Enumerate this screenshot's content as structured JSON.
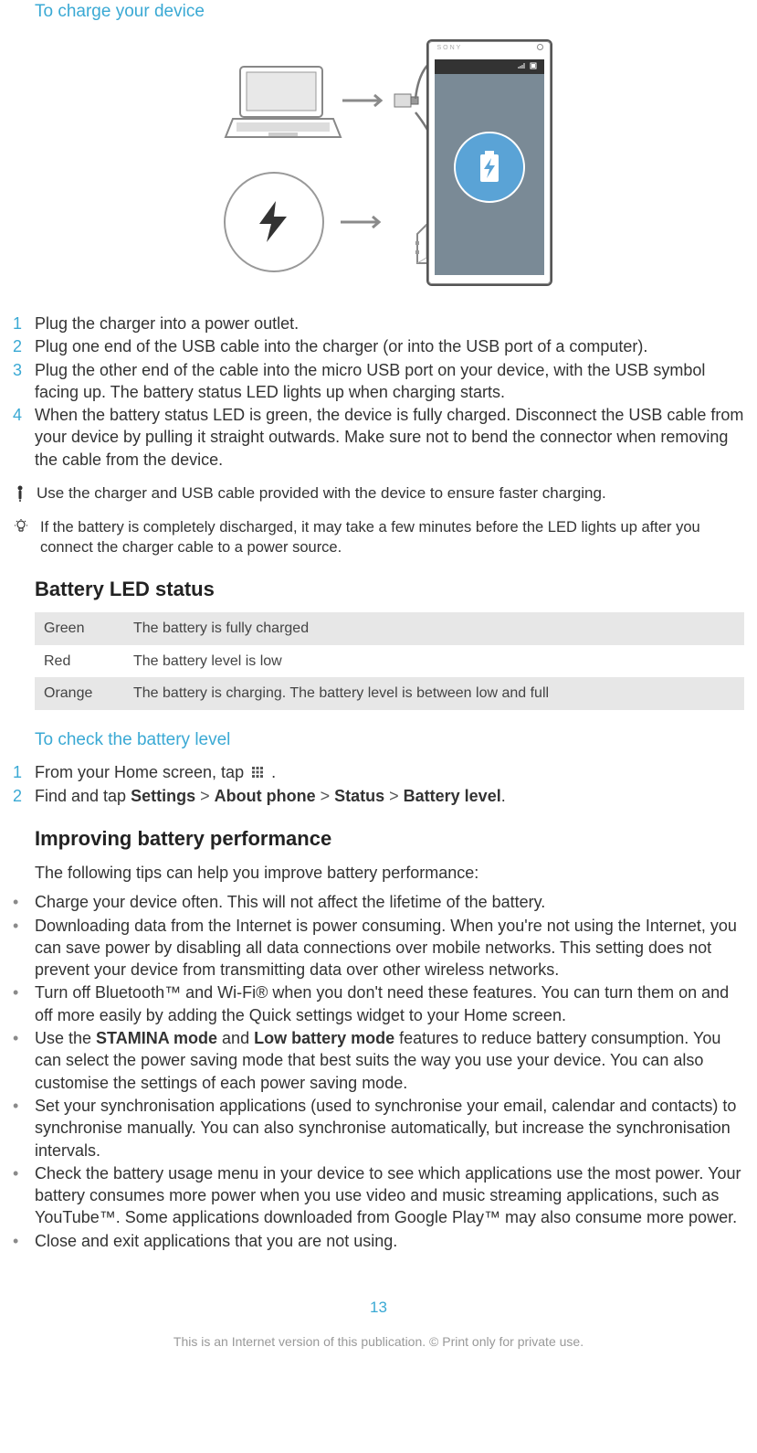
{
  "colors": {
    "accent": "#3aa9d4",
    "step_num": "#3aa9d4",
    "bullet": "#8a8a8a",
    "table_shade": "#e7e7e7",
    "footer_grey": "#999",
    "phone_screen": "#7a8a96",
    "battery_badge": "#5aa3d6"
  },
  "section1": {
    "title": "To charge your device",
    "phone_brand": "SONY",
    "steps": [
      "Plug the charger into a power outlet.",
      "Plug one end of the USB cable into the charger (or into the USB port of a computer).",
      "Plug the other end of the cable into the micro USB port on your device, with the USB symbol facing up. The battery status LED lights up when charging starts.",
      "When the battery status LED is green, the device is fully charged. Disconnect the USB cable from your device by pulling it straight outwards. Make sure not to bend the connector when removing the cable from the device."
    ],
    "note_important": "Use the charger and USB cable provided with the device to ensure faster charging.",
    "note_tip": "If the battery is completely discharged, it may take a few minutes before the LED lights up after you connect the charger cable to a power source."
  },
  "led_status": {
    "title": "Battery LED status",
    "rows": [
      {
        "label": "Green",
        "desc": "The battery is fully charged"
      },
      {
        "label": "Red",
        "desc": "The battery level is low"
      },
      {
        "label": "Orange",
        "desc": "The battery is charging. The battery level is between low and full"
      }
    ]
  },
  "check_level": {
    "title": "To check the battery level",
    "step1_pre": "From your Home screen, tap ",
    "step1_post": " .",
    "step2_parts": {
      "pre": "Find and tap ",
      "b1": "Settings",
      "b2": "About phone",
      "b3": "Status",
      "b4": "Battery level",
      "gt": " > ",
      "end": "."
    }
  },
  "improving": {
    "title": "Improving battery performance",
    "intro": "The following tips can help you improve battery performance:",
    "bullets": [
      {
        "text_pre": "Charge your device often. This will not affect the lifetime of the battery."
      },
      {
        "text_pre": "Downloading data from the Internet is power consuming. When you're not using the Internet, you can save power by disabling all data connections over mobile networks. This setting does not prevent your device from transmitting data over other wireless networks."
      },
      {
        "text_pre": "Turn off Bluetooth™ and Wi-Fi® when you don't need these features. You can turn them on and off more easily by adding the Quick settings widget to your Home screen."
      },
      {
        "text_pre": "Use the ",
        "bold1": "STAMINA mode",
        "mid1": " and ",
        "bold2": "Low battery mode",
        "text_post": " features to reduce battery consumption. You can select the power saving mode that best suits the way you use your device. You can also customise the settings of each power saving mode."
      },
      {
        "text_pre": "Set your synchronisation applications (used to synchronise your email, calendar and contacts) to synchronise manually. You can also synchronise automatically, but increase the synchronisation intervals."
      },
      {
        "text_pre": "Check the battery usage menu in your device to see which applications use the most power. Your battery consumes more power when you use video and music streaming applications, such as YouTube™. Some applications downloaded from Google Play™ may also consume more power."
      },
      {
        "text_pre": "Close and exit applications that you are not using."
      }
    ]
  },
  "footer": {
    "page": "13",
    "text": "This is an Internet version of this publication. © Print only for private use."
  }
}
